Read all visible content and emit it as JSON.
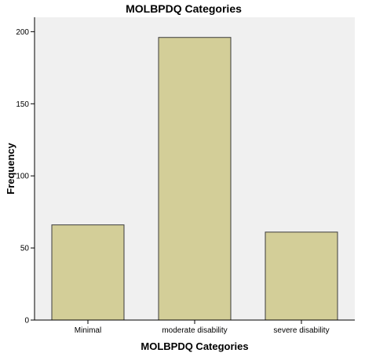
{
  "chart_data": {
    "type": "bar",
    "title": "MOLBPDQ Categories",
    "xlabel": "MOLBPDQ Categories",
    "ylabel": "Frequency",
    "categories": [
      "Minimal",
      "moderate disability",
      "severe disability"
    ],
    "values": [
      66,
      196,
      61
    ],
    "ylim": [
      0,
      210
    ],
    "yticks": [
      0,
      50,
      100,
      150,
      200
    ],
    "grid": false,
    "legend": "none",
    "colors": {
      "bar_fill": "#d3ce98",
      "bar_stroke": "#3b3b3b",
      "plot_background": "#f0f0f0",
      "axis": "#000000"
    }
  }
}
